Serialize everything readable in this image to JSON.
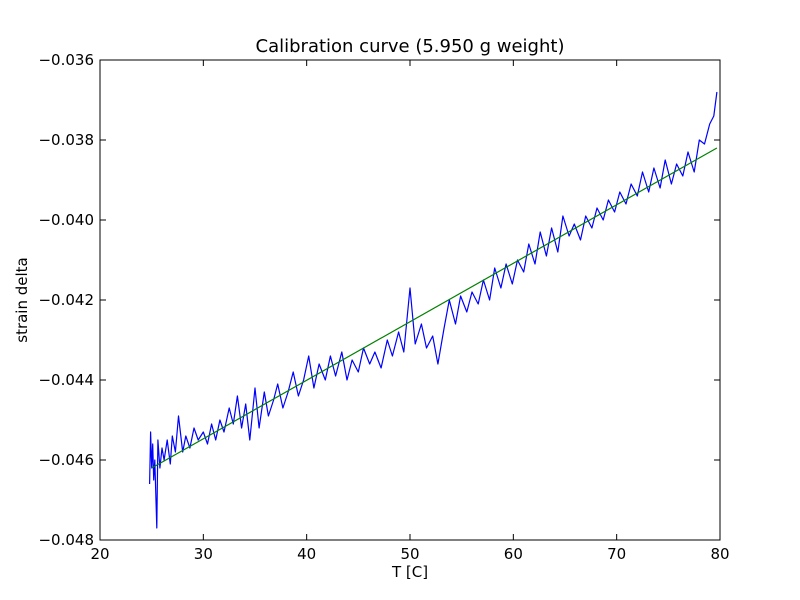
{
  "chart_data": {
    "type": "line",
    "title": "Calibration curve (5.950 g weight)",
    "xlabel": "T [C]",
    "ylabel": "strain delta",
    "xlim": [
      20,
      80
    ],
    "ylim": [
      -0.048,
      -0.036
    ],
    "x_ticks": [
      20,
      30,
      40,
      50,
      60,
      70,
      80
    ],
    "x_tick_labels": [
      "20",
      "30",
      "40",
      "50",
      "60",
      "70",
      "80"
    ],
    "y_ticks": [
      -0.048,
      -0.046,
      -0.044,
      -0.042,
      -0.04,
      -0.038,
      -0.036
    ],
    "y_tick_labels": [
      "−0.048",
      "−0.046",
      "−0.044",
      "−0.042",
      "−0.040",
      "−0.038",
      "−0.036"
    ],
    "grid": false,
    "series": [
      {
        "color": "#0000ff",
        "style": "line",
        "x": [
          24.8,
          24.9,
          25.0,
          25.1,
          25.2,
          25.3,
          25.5,
          25.6,
          25.8,
          26.0,
          26.2,
          26.5,
          26.8,
          27.0,
          27.3,
          27.6,
          28.0,
          28.3,
          28.7,
          29.1,
          29.5,
          30.0,
          30.4,
          30.8,
          31.2,
          31.6,
          32.0,
          32.5,
          32.9,
          33.3,
          33.7,
          34.1,
          34.5,
          35.0,
          35.4,
          35.9,
          36.3,
          36.8,
          37.2,
          37.7,
          38.2,
          38.7,
          39.2,
          39.7,
          40.2,
          40.7,
          41.2,
          41.8,
          42.3,
          42.8,
          43.4,
          43.9,
          44.4,
          45.0,
          45.5,
          46.1,
          46.6,
          47.2,
          47.8,
          48.3,
          48.9,
          49.4,
          50.0,
          50.5,
          51.1,
          51.6,
          52.2,
          52.7,
          53.3,
          53.8,
          54.4,
          54.9,
          55.5,
          56.0,
          56.6,
          57.1,
          57.7,
          58.2,
          58.8,
          59.3,
          59.9,
          60.4,
          61.0,
          61.5,
          62.1,
          62.6,
          63.2,
          63.7,
          64.3,
          64.8,
          65.4,
          65.9,
          66.5,
          67.0,
          67.6,
          68.1,
          68.7,
          69.2,
          69.8,
          70.3,
          70.9,
          71.4,
          72.0,
          72.5,
          73.1,
          73.6,
          74.2,
          74.7,
          75.3,
          75.8,
          76.4,
          76.9,
          77.5,
          78.0,
          78.5,
          79.0,
          79.4,
          79.7
        ],
        "y": [
          -0.0466,
          -0.0453,
          -0.0462,
          -0.0456,
          -0.0465,
          -0.046,
          -0.0477,
          -0.0455,
          -0.0462,
          -0.0457,
          -0.046,
          -0.0455,
          -0.0461,
          -0.0454,
          -0.0458,
          -0.0449,
          -0.0458,
          -0.0454,
          -0.0457,
          -0.0452,
          -0.0455,
          -0.0453,
          -0.0456,
          -0.0451,
          -0.0455,
          -0.045,
          -0.0453,
          -0.0447,
          -0.0451,
          -0.0444,
          -0.0452,
          -0.0446,
          -0.0455,
          -0.0442,
          -0.0452,
          -0.0443,
          -0.0449,
          -0.0445,
          -0.0441,
          -0.0447,
          -0.0443,
          -0.0438,
          -0.0444,
          -0.044,
          -0.0434,
          -0.0442,
          -0.0436,
          -0.044,
          -0.0434,
          -0.0439,
          -0.0433,
          -0.044,
          -0.0435,
          -0.0438,
          -0.0432,
          -0.0436,
          -0.0433,
          -0.0437,
          -0.043,
          -0.0434,
          -0.0428,
          -0.0433,
          -0.0417,
          -0.0431,
          -0.0426,
          -0.0432,
          -0.0429,
          -0.0436,
          -0.0427,
          -0.042,
          -0.0426,
          -0.0419,
          -0.0423,
          -0.0418,
          -0.0421,
          -0.0415,
          -0.042,
          -0.0412,
          -0.0417,
          -0.0411,
          -0.0416,
          -0.041,
          -0.0413,
          -0.0406,
          -0.0411,
          -0.0403,
          -0.0409,
          -0.0402,
          -0.0408,
          -0.0399,
          -0.0404,
          -0.0401,
          -0.0405,
          -0.0399,
          -0.0402,
          -0.0397,
          -0.04,
          -0.0395,
          -0.0398,
          -0.0393,
          -0.0396,
          -0.0391,
          -0.0394,
          -0.0388,
          -0.0393,
          -0.0387,
          -0.0392,
          -0.0385,
          -0.0391,
          -0.0386,
          -0.0389,
          -0.0383,
          -0.0388,
          -0.038,
          -0.0381,
          -0.0376,
          -0.0374,
          -0.0368
        ]
      },
      {
        "color": "#008000",
        "style": "line",
        "x": [
          25.0,
          79.7
        ],
        "y": [
          -0.0462,
          -0.0382
        ]
      }
    ]
  }
}
